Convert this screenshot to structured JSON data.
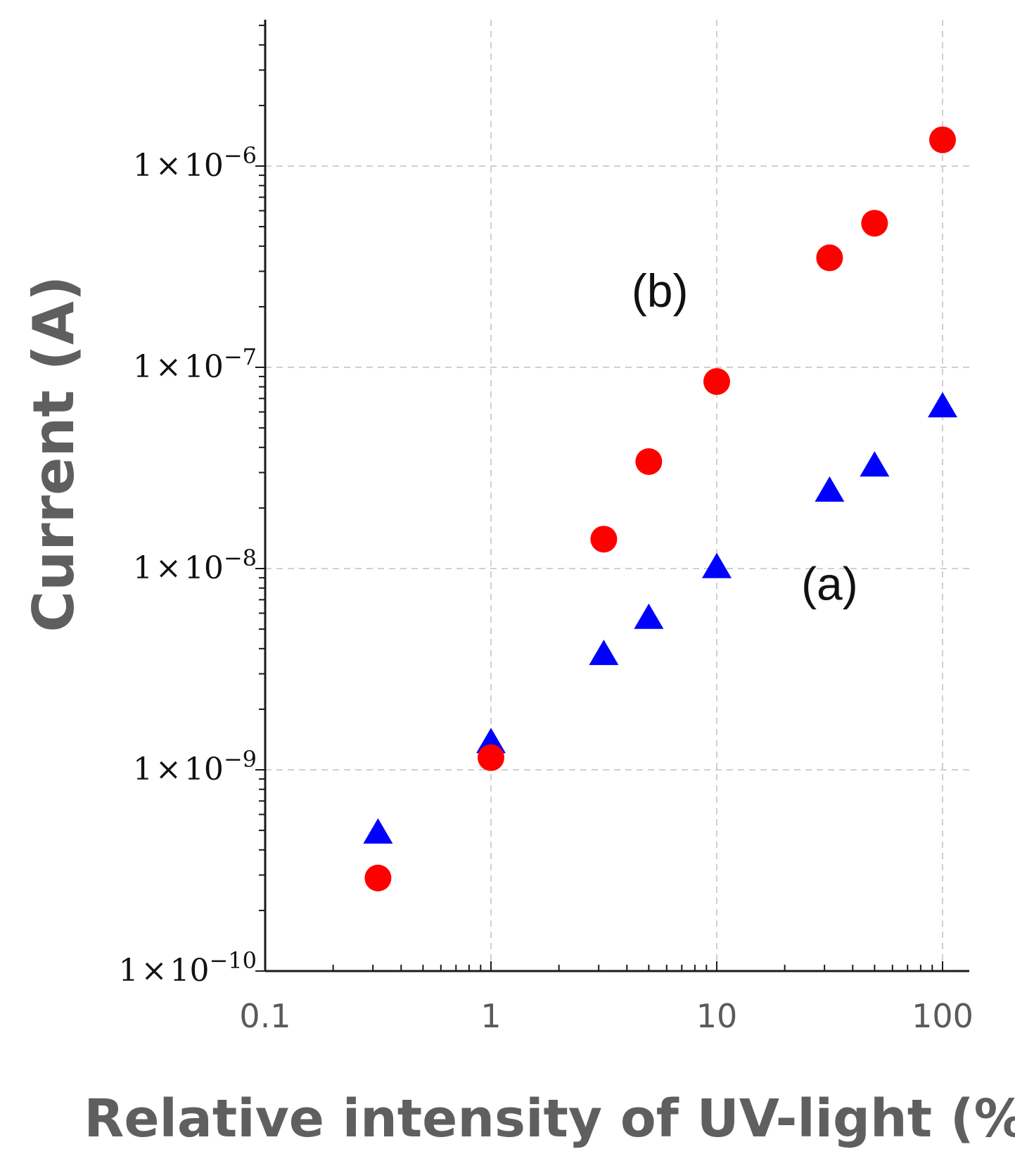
{
  "chart_data": {
    "type": "scatter",
    "title": "",
    "xlabel": "Relative intensity of UV-light (%)",
    "ylabel": "Current (A)",
    "xscale": "log",
    "yscale": "log",
    "xlim": [
      0.1,
      100
    ],
    "ylim": [
      1e-10,
      5e-06
    ],
    "grid": "dashed",
    "x_ticks": [
      {
        "value": 0.1,
        "label": "0.1"
      },
      {
        "value": 1,
        "label": "1"
      },
      {
        "value": 10,
        "label": "10"
      },
      {
        "value": 100,
        "label": "100"
      }
    ],
    "y_ticks": [
      {
        "value": 1e-10,
        "mant": "1",
        "times": "×",
        "base": "10",
        "exp": "−10"
      },
      {
        "value": 1e-09,
        "mant": "1",
        "times": "×",
        "base": "10",
        "exp": "−9"
      },
      {
        "value": 1e-08,
        "mant": "1",
        "times": "×",
        "base": "10",
        "exp": "−8"
      },
      {
        "value": 1e-07,
        "mant": "1",
        "times": "×",
        "base": "10",
        "exp": "−7"
      },
      {
        "value": 1e-06,
        "mant": "1",
        "times": "×",
        "base": "10",
        "exp": "−6"
      }
    ],
    "series": [
      {
        "name": "(a)",
        "marker": "triangle",
        "color": "#0000ff",
        "x": [
          0.316,
          1,
          3.16,
          5,
          10,
          31.6,
          50,
          100
        ],
        "y": [
          4.8e-10,
          1.35e-09,
          3.7e-09,
          5.6e-09,
          1e-08,
          2.4e-08,
          3.2e-08,
          6.3e-08
        ]
      },
      {
        "name": "(b)",
        "marker": "circle",
        "color": "#ff0000",
        "x": [
          0.316,
          1,
          3.16,
          5,
          10,
          31.6,
          50,
          100
        ],
        "y": [
          2.9e-10,
          1.15e-09,
          1.4e-08,
          3.4e-08,
          8.5e-08,
          3.5e-07,
          5.2e-07,
          1.35e-06
        ]
      }
    ],
    "annotations": [
      {
        "text": "(a)",
        "x": 31.6,
        "y": 7e-09
      },
      {
        "text": "(b)",
        "x": 5.6,
        "y": 2e-07
      }
    ]
  }
}
